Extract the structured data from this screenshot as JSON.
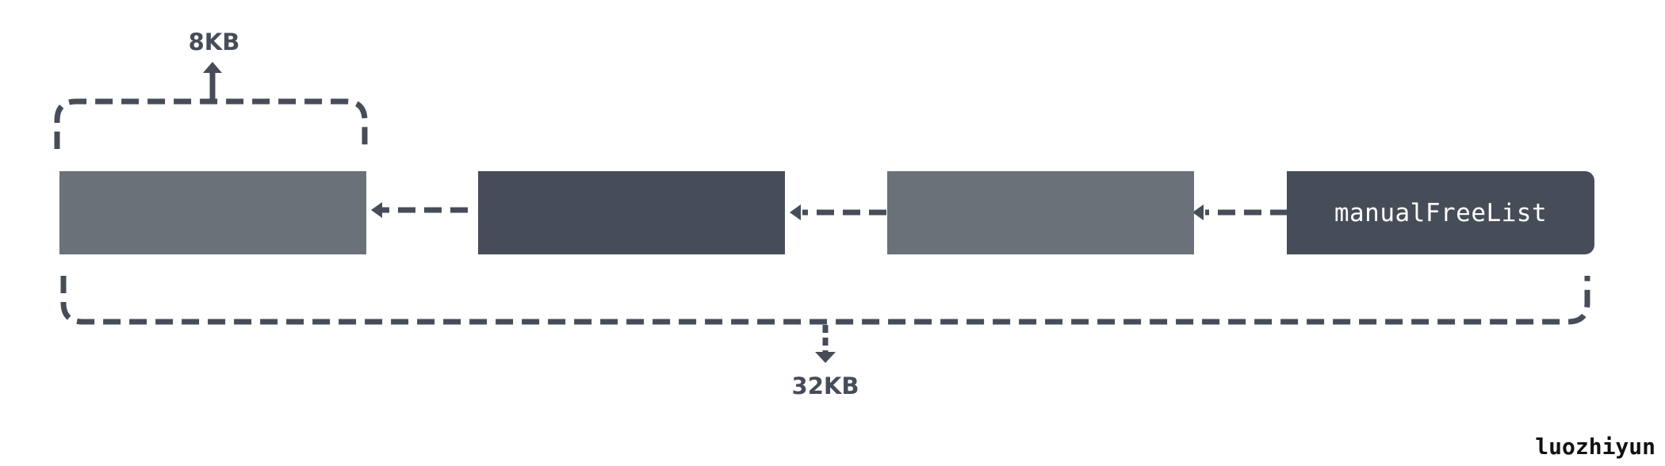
{
  "diagram": {
    "head_label": "manualFreeList",
    "small_span_label": "8KB",
    "large_span_label": "32KB",
    "author": "luozhiyun"
  },
  "colors": {
    "light_block": "#6b7178",
    "dark_block": "#474d58",
    "connector": "#474d58"
  },
  "icons": {
    "link_arrow": "left-arrow-icon",
    "size_up": "up-arrow-icon",
    "size_down": "down-arrow-icon"
  }
}
